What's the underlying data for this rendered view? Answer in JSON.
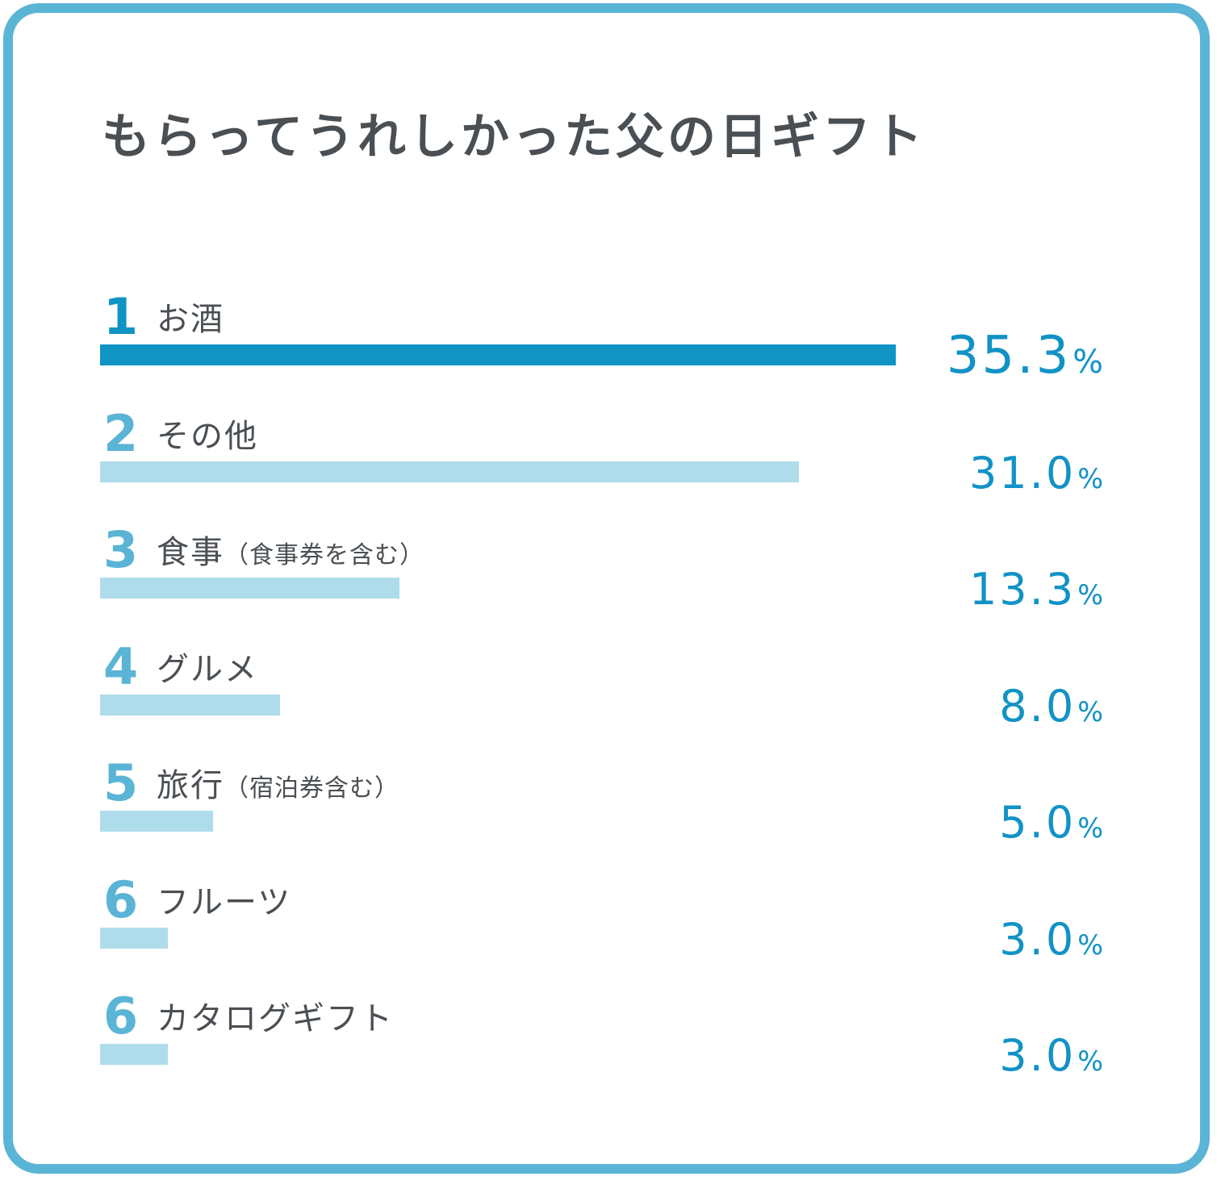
{
  "title": "もらってうれしかった父の日ギフト",
  "colors": {
    "frame": "#5ab4d6",
    "top_bar": "#0f94c4",
    "bar": "#afdcea",
    "top_rank": "#0f94c4",
    "rank": "#5ab4d6",
    "percent": "#1192c6",
    "text": "#4a4f54"
  },
  "chart_data": {
    "type": "bar",
    "orientation": "horizontal",
    "title": "もらってうれしかった父の日ギフト",
    "unit": "%",
    "xlim": [
      0,
      35.3
    ],
    "items": [
      {
        "rank": "1",
        "label": "お酒",
        "sublabel": "",
        "value": 35.3,
        "value_text": "35.3"
      },
      {
        "rank": "2",
        "label": "その他",
        "sublabel": "",
        "value": 31.0,
        "value_text": "31.0"
      },
      {
        "rank": "3",
        "label": "食事",
        "sublabel": "（食事券を含む）",
        "value": 13.3,
        "value_text": "13.3"
      },
      {
        "rank": "4",
        "label": "グルメ",
        "sublabel": "",
        "value": 8.0,
        "value_text": "8.0"
      },
      {
        "rank": "5",
        "label": "旅行",
        "sublabel": "（宿泊券含む）",
        "value": 5.0,
        "value_text": "5.0"
      },
      {
        "rank": "6",
        "label": "フルーツ",
        "sublabel": "",
        "value": 3.0,
        "value_text": "3.0"
      },
      {
        "rank": "6",
        "label": "カタログギフト",
        "sublabel": "",
        "value": 3.0,
        "value_text": "3.0"
      }
    ]
  }
}
